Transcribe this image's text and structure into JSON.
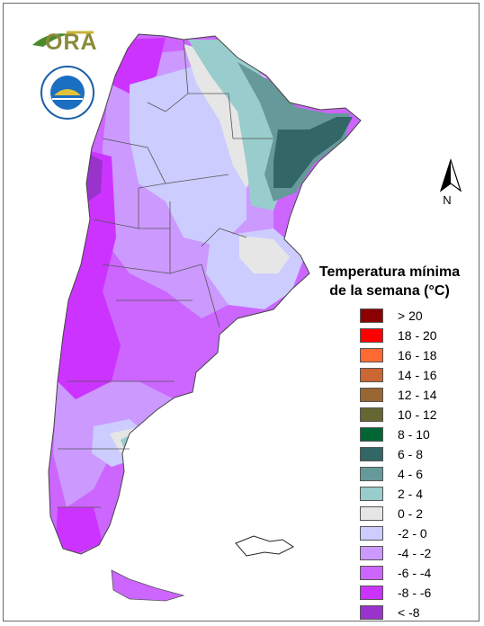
{
  "logos": {
    "ora": {
      "text": "ORA",
      "icon": "ora-logo"
    },
    "smn": {
      "icon": "smn-seal"
    }
  },
  "north_arrow": {
    "label": "N",
    "icon": "north-arrow-icon"
  },
  "legend": {
    "title_line1": "Temperatura mínima",
    "title_line2": "de la semana (°C)",
    "items": [
      {
        "label": "> 20",
        "color": "#8b0000"
      },
      {
        "label": "18 - 20",
        "color": "#ff0000"
      },
      {
        "label": "16 - 18",
        "color": "#ff6a33"
      },
      {
        "label": "14 - 16",
        "color": "#cc6633"
      },
      {
        "label": "12 - 14",
        "color": "#996633"
      },
      {
        "label": "10 - 12",
        "color": "#666633"
      },
      {
        "label": "8 - 10",
        "color": "#006633"
      },
      {
        "label": "6 - 8",
        "color": "#336666"
      },
      {
        "label": "4 - 6",
        "color": "#669999"
      },
      {
        "label": "2 - 4",
        "color": "#99cccc"
      },
      {
        "label": "0 - 2",
        "color": "#e6e6e6"
      },
      {
        "label": "-2 - 0",
        "color": "#ccccff"
      },
      {
        "label": "-4 - -2",
        "color": "#cc99ff"
      },
      {
        "label": "-6 - -4",
        "color": "#cc66ff"
      },
      {
        "label": "-8 - -6",
        "color": "#cc33ff"
      },
      {
        "label": "< -8",
        "color": "#9933cc"
      }
    ]
  }
}
